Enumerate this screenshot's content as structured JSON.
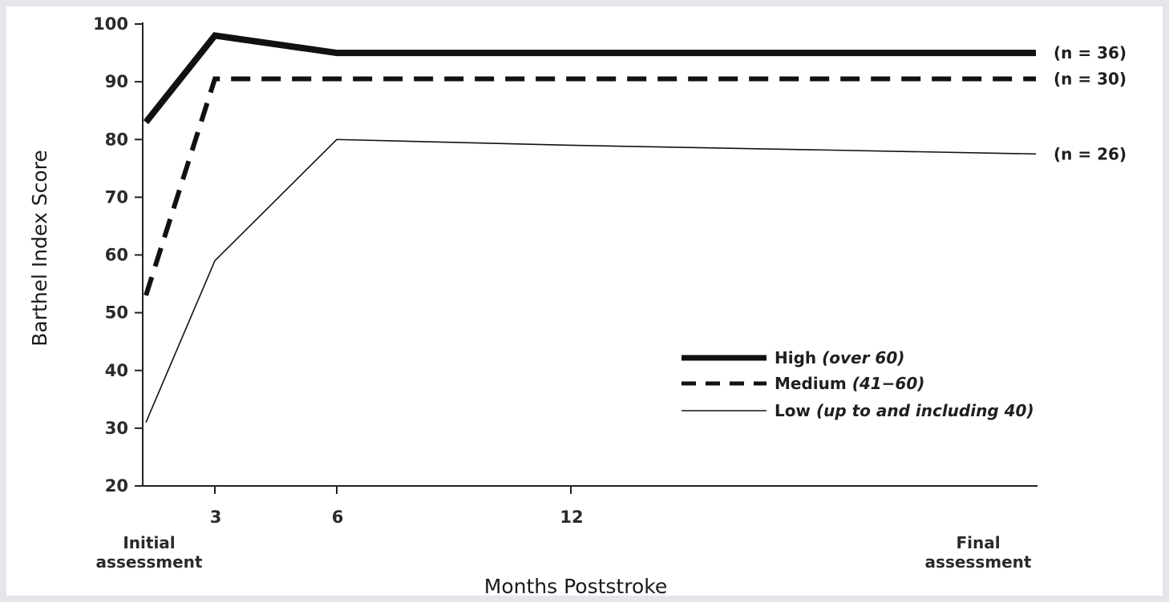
{
  "chart_data": {
    "type": "line",
    "xlabel": "Months Poststroke",
    "ylabel": "Barthel Index Score",
    "ylim": [
      20,
      100
    ],
    "yticks": [
      20,
      30,
      40,
      50,
      60,
      70,
      80,
      90,
      100
    ],
    "x": [
      "Initial assessment",
      "3",
      "6",
      "12",
      "Final assessment"
    ],
    "x_tick_labels": [
      "3",
      "6",
      "12"
    ],
    "x_end_labels": {
      "start": [
        "Initial",
        "assessment"
      ],
      "end": [
        "Final",
        "assessment"
      ]
    },
    "grid": false,
    "legend_position": "right",
    "series": [
      {
        "name": "High",
        "name_qualifier": "(over 60)",
        "style": "thick-solid",
        "n_label": "(n = 36)",
        "values": [
          83,
          98,
          95,
          95,
          95
        ]
      },
      {
        "name": "Medium",
        "name_qualifier": "(41−60)",
        "style": "dashed",
        "n_label": "(n = 30)",
        "values": [
          53,
          90.5,
          90.5,
          90.5,
          90.5
        ]
      },
      {
        "name": "Low",
        "name_qualifier": "(up to and including 40)",
        "style": "thin-solid",
        "n_label": "(n = 26)",
        "values": [
          31,
          59,
          80,
          79,
          77.5
        ]
      }
    ]
  }
}
